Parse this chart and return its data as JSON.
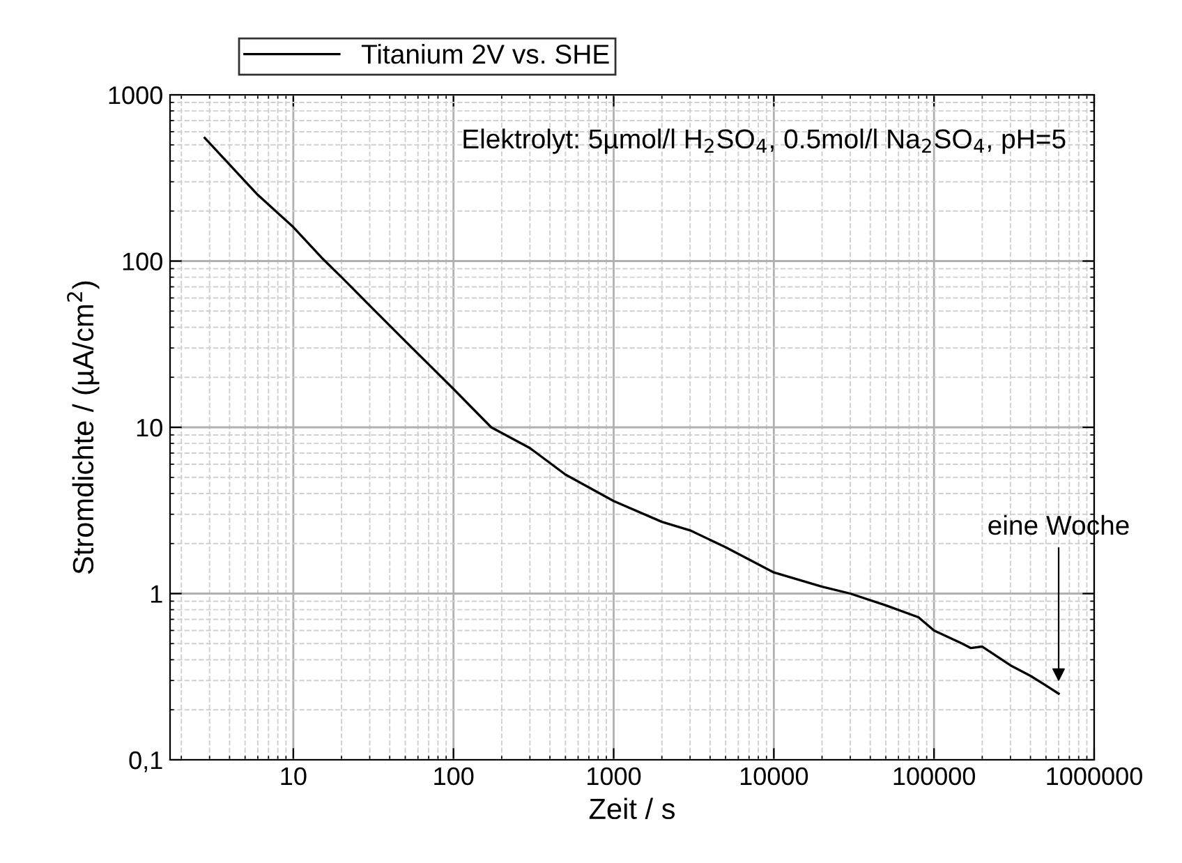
{
  "chart_data": {
    "type": "line",
    "xlabel": "Zeit / s",
    "ylabel": "Stromdichte / (µA/cm$^{2}$)",
    "log": "xy",
    "grid": true,
    "legend": "top",
    "line_style": "solid",
    "marker": "none",
    "xlim": [
      1.7,
      1000000
    ],
    "xticks": [
      10,
      100,
      1000,
      10000,
      100000,
      1000000
    ],
    "ylim": [
      0.1,
      1000
    ],
    "yticks": [
      {
        "value": 0.1,
        "label": "0,1"
      },
      1,
      10,
      100,
      1000
    ],
    "series": [
      {
        "name": "Titanium 2V vs. SHE",
        "color": "#000000",
        "x": [
          2.8,
          4,
          6,
          10,
          15,
          20,
          30,
          50,
          100,
          172,
          300,
          500,
          1000,
          2000,
          3000,
          5000,
          10000,
          20000,
          30000,
          50000,
          80000,
          100000,
          150000,
          170000,
          200000,
          300000,
          400000,
          500000,
          600000
        ],
        "values": [
          550,
          380,
          250,
          160,
          105,
          80,
          54,
          33,
          17,
          10,
          7.5,
          5.2,
          3.6,
          2.7,
          2.4,
          1.9,
          1.34,
          1.1,
          1.0,
          0.85,
          0.72,
          0.6,
          0.5,
          0.47,
          0.48,
          0.37,
          0.32,
          0.28,
          0.25
        ]
      }
    ],
    "annotations": [
      "Elektrolyt: 5µmol/l H$_{2}$SO$_{4}$, 0.5mol/l Na$_{2}$SO$_{4}$, pH=5",
      {
        "text": "eine Woche",
        "x": 600000,
        "y": 0.28
      }
    ]
  }
}
